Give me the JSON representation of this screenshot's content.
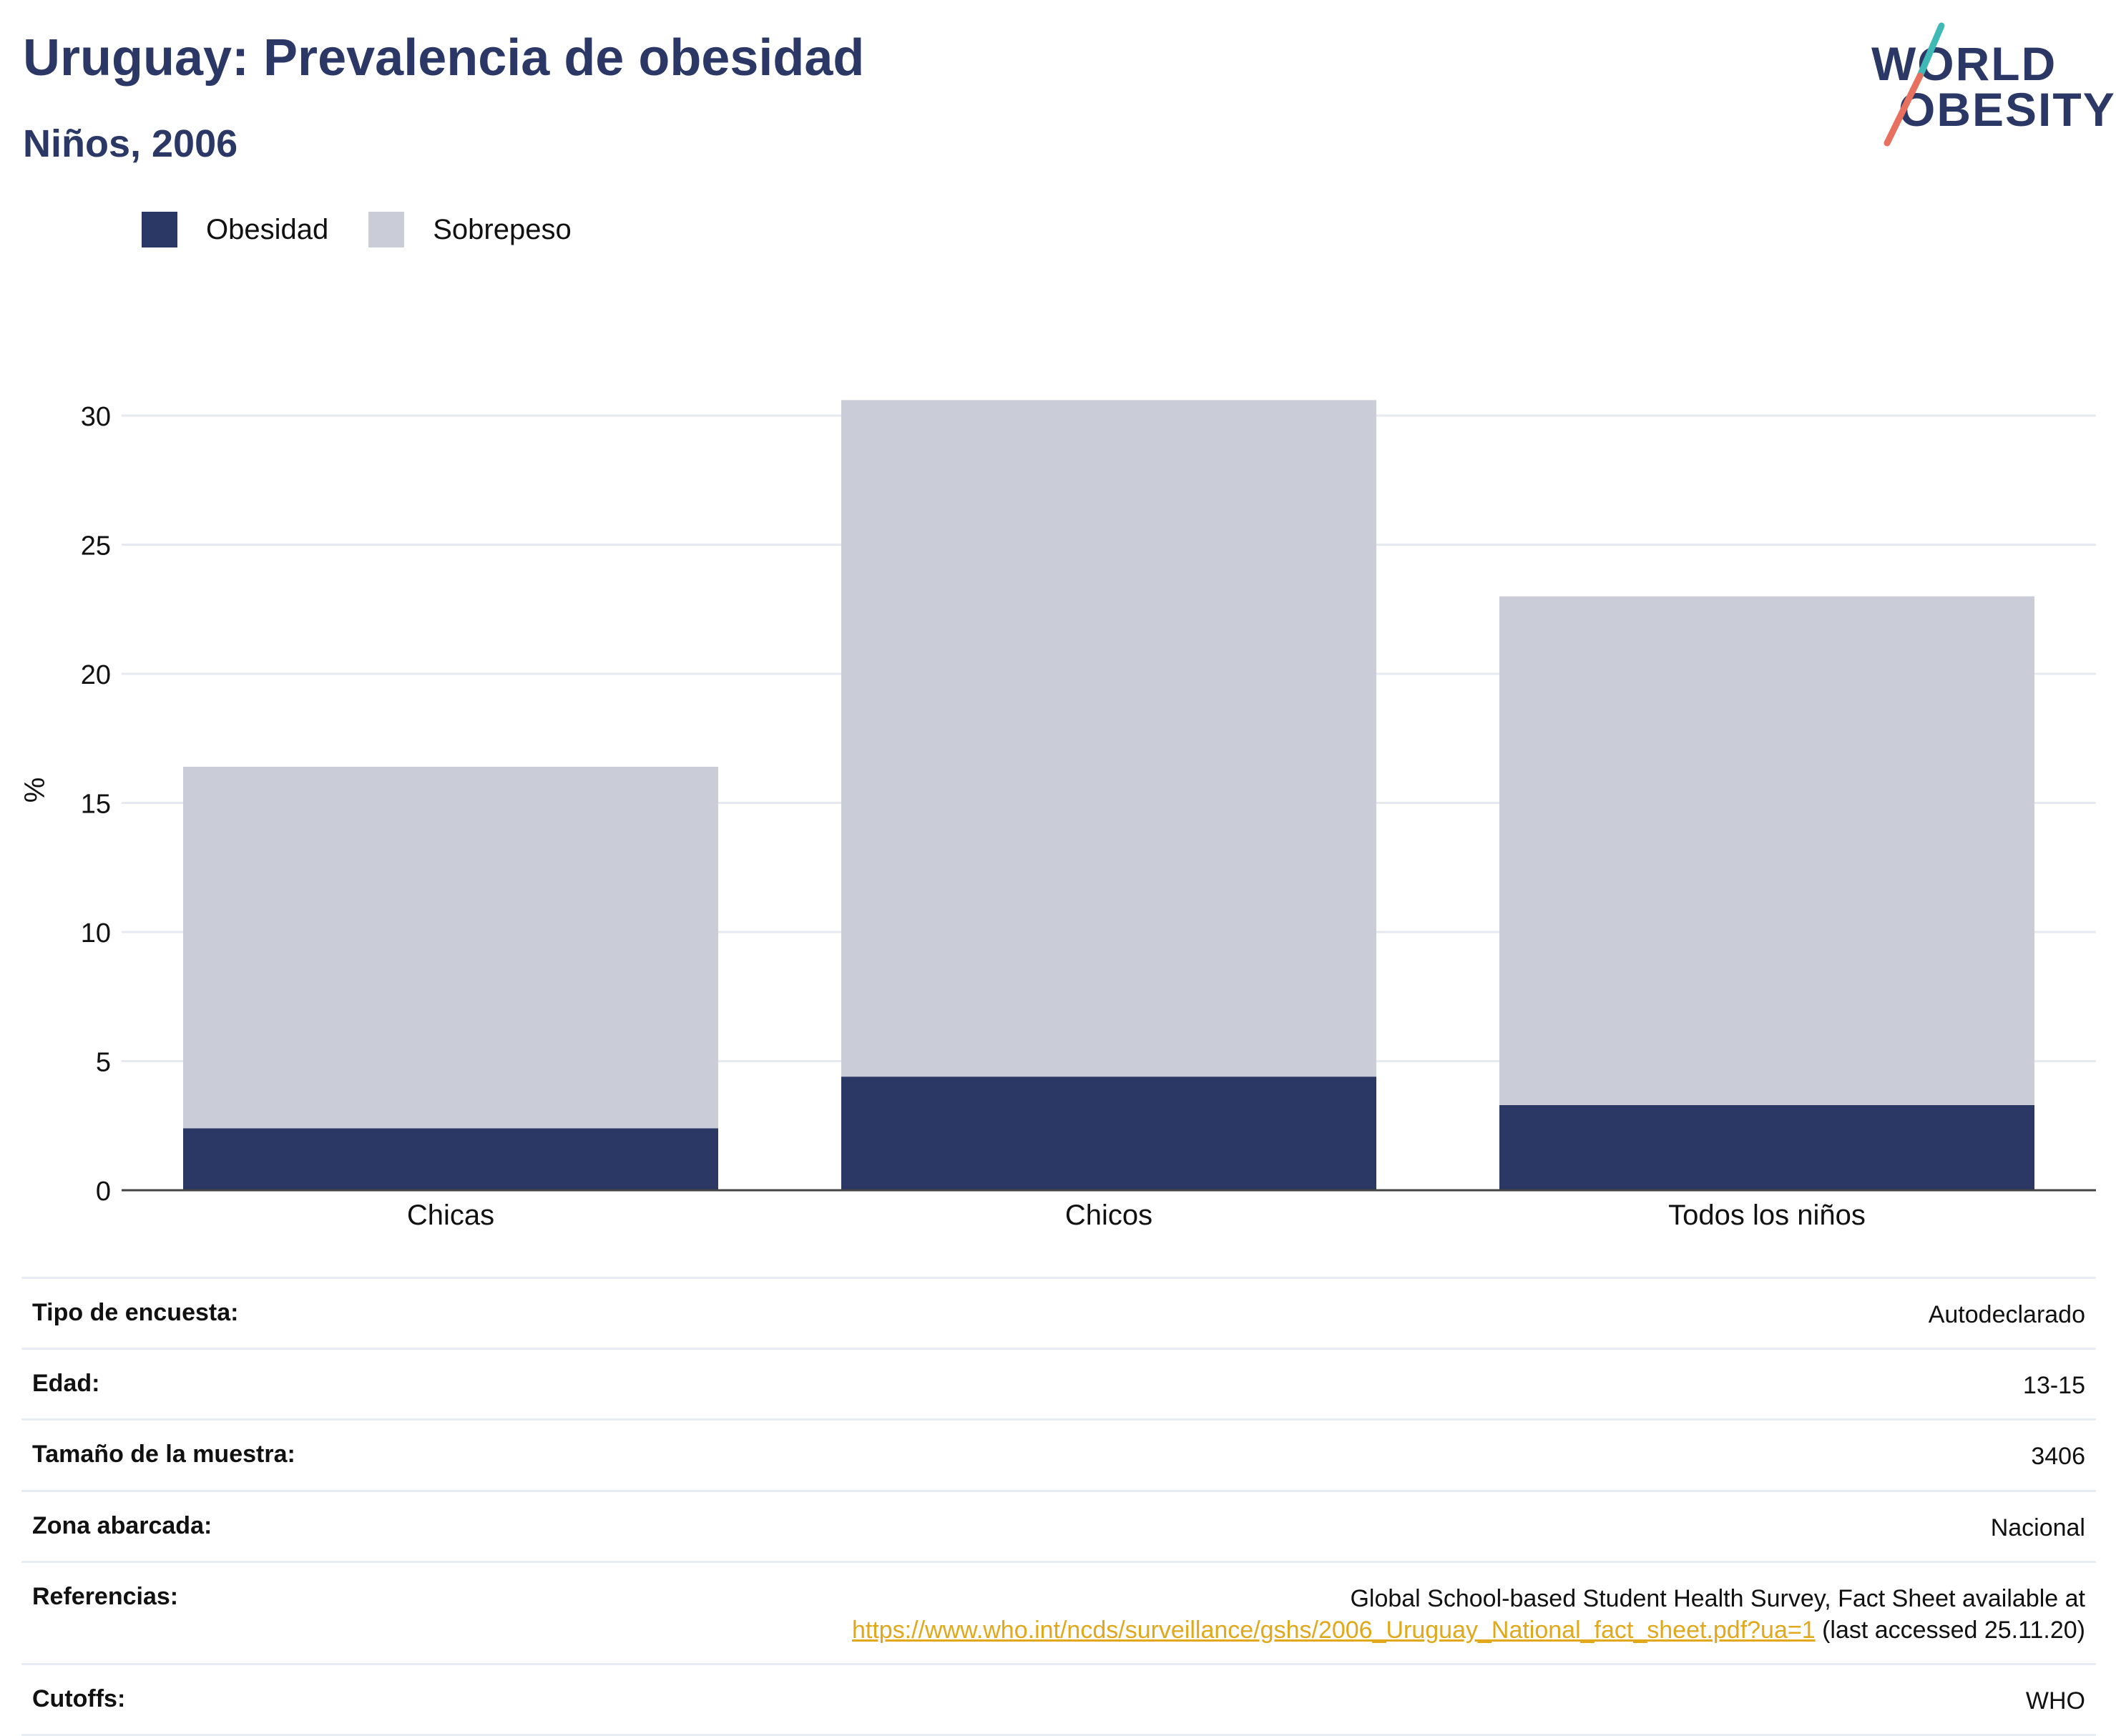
{
  "header": {
    "title": "Uruguay: Prevalencia de obesidad",
    "subtitle": "Niños, 2006"
  },
  "logo": {
    "line1": "WORLD",
    "line2": "OBESITY",
    "colors": {
      "text": "#2b3866",
      "slash_top": "#3fb9b5",
      "slash_bottom": "#e8705f"
    }
  },
  "legend": [
    {
      "label": "Obesidad",
      "color": "#2b3866"
    },
    {
      "label": "Sobrepeso",
      "color": "#cacdd8"
    }
  ],
  "chart_data": {
    "type": "bar",
    "stacked": true,
    "categories": [
      "Chicas",
      "Chicos",
      "Todos los niños"
    ],
    "series": [
      {
        "name": "Obesidad",
        "values": [
          2.4,
          4.4,
          3.3
        ],
        "color": "#2b3866"
      },
      {
        "name": "Sobrepeso",
        "values": [
          14.0,
          26.2,
          19.7
        ],
        "color": "#cacdd8"
      }
    ],
    "ylabel": "%",
    "ylim": [
      0,
      32
    ],
    "yticks": [
      0,
      5,
      10,
      15,
      20,
      25,
      30
    ],
    "grid": true,
    "legend_position": "top-left"
  },
  "info": [
    {
      "label": "Tipo de encuesta:",
      "value": "Autodeclarado"
    },
    {
      "label": "Edad:",
      "value": "13-15"
    },
    {
      "label": "Tamaño de la muestra:",
      "value": "3406"
    },
    {
      "label": "Zona abarcada:",
      "value": "Nacional"
    },
    {
      "label": "Referencias:",
      "value": "Global School-based Student Health Survey, Fact Sheet available at",
      "link": "https://www.who.int/ncds/surveillance/gshs/2006_Uruguay_National_fact_sheet.pdf?ua=1",
      "suffix": " (last accessed 25.11.20)"
    },
    {
      "label": "Cutoffs:",
      "value": "WHO"
    }
  ]
}
